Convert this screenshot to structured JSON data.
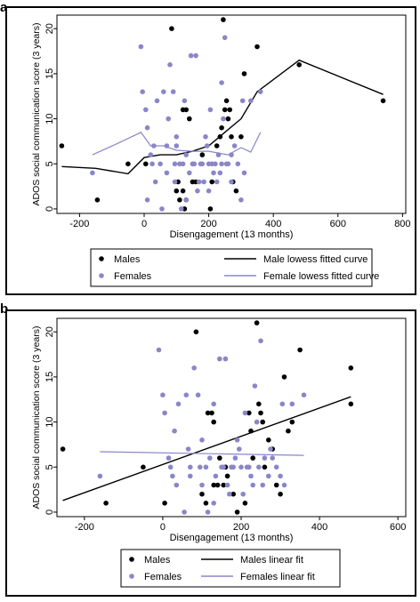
{
  "panels": [
    {
      "letter": "a",
      "colors": {
        "male": "#000000",
        "female": "#8a86c8"
      },
      "legend": {
        "males": "Males",
        "females": "Females",
        "male_fit": "Male lowess fitted curve",
        "female_fit": "Female lowess fitted curve"
      }
    },
    {
      "letter": "b",
      "colors": {
        "male": "#000000",
        "female": "#8a86c8"
      },
      "legend": {
        "males": "Males",
        "females": "Females",
        "male_fit": "Males linear fit",
        "female_fit": "Females linear fit"
      }
    }
  ],
  "chart_data": [
    {
      "type": "scatter",
      "title": "",
      "xlabel": "Disengagement (13 months)",
      "ylabel": "ADOS social communication score (3 years)",
      "xlim": [
        -270,
        810
      ],
      "ylim": [
        -0.5,
        21.5
      ],
      "xticks": [
        -200,
        0,
        200,
        400,
        600,
        800
      ],
      "yticks": [
        0,
        5,
        10,
        15,
        20
      ],
      "grid": false,
      "legend_position": "bottom",
      "series": [
        {
          "name": "Males",
          "kind": "points",
          "points": [
            [
              -255,
              7
            ],
            [
              -145,
              1
            ],
            [
              -50,
              5
            ],
            [
              5,
              5
            ],
            [
              85,
              20
            ],
            [
              105,
              3
            ],
            [
              120,
              11
            ],
            [
              130,
              11
            ],
            [
              140,
              10
            ],
            [
              100,
              2
            ],
            [
              110,
              1
            ],
            [
              120,
              2
            ],
            [
              125,
              0
            ],
            [
              130,
              1
            ],
            [
              150,
              3
            ],
            [
              160,
              3
            ],
            [
              180,
              6
            ],
            [
              205,
              0
            ],
            [
              210,
              3
            ],
            [
              225,
              7
            ],
            [
              235,
              8
            ],
            [
              240,
              9
            ],
            [
              250,
              11
            ],
            [
              255,
              12
            ],
            [
              260,
              10
            ],
            [
              265,
              11
            ],
            [
              270,
              8
            ],
            [
              275,
              3
            ],
            [
              245,
              21
            ],
            [
              285,
              2
            ],
            [
              300,
              8
            ],
            [
              310,
              15
            ],
            [
              350,
              18
            ],
            [
              480,
              16
            ],
            [
              740,
              12
            ]
          ]
        },
        {
          "name": "Females",
          "kind": "points",
          "points": [
            [
              -160,
              4
            ],
            [
              -10,
              18
            ],
            [
              -5,
              13
            ],
            [
              5,
              11
            ],
            [
              10,
              9
            ],
            [
              10,
              1
            ],
            [
              20,
              6
            ],
            [
              25,
              5
            ],
            [
              30,
              7
            ],
            [
              35,
              3
            ],
            [
              40,
              12
            ],
            [
              50,
              5
            ],
            [
              55,
              0
            ],
            [
              60,
              13
            ],
            [
              70,
              4
            ],
            [
              70,
              7
            ],
            [
              75,
              10
            ],
            [
              80,
              16
            ],
            [
              90,
              13
            ],
            [
              95,
              5
            ],
            [
              95,
              3
            ],
            [
              100,
              8
            ],
            [
              100,
              7
            ],
            [
              110,
              5
            ],
            [
              115,
              0
            ],
            [
              120,
              5
            ],
            [
              125,
              12
            ],
            [
              130,
              6
            ],
            [
              130,
              1
            ],
            [
              140,
              4
            ],
            [
              145,
              17
            ],
            [
              150,
              5
            ],
            [
              155,
              5
            ],
            [
              160,
              17
            ],
            [
              165,
              2
            ],
            [
              170,
              3
            ],
            [
              175,
              5
            ],
            [
              180,
              5
            ],
            [
              185,
              3
            ],
            [
              190,
              8
            ],
            [
              195,
              7
            ],
            [
              200,
              5
            ],
            [
              200,
              2
            ],
            [
              205,
              11
            ],
            [
              210,
              5
            ],
            [
              215,
              4
            ],
            [
              220,
              5
            ],
            [
              225,
              3
            ],
            [
              230,
              6
            ],
            [
              235,
              4
            ],
            [
              240,
              14
            ],
            [
              240,
              5
            ],
            [
              245,
              10
            ],
            [
              250,
              19
            ],
            [
              255,
              5
            ],
            [
              260,
              5
            ],
            [
              270,
              3
            ],
            [
              270,
              6
            ],
            [
              280,
              7
            ],
            [
              290,
              5
            ],
            [
              300,
              1
            ],
            [
              305,
              12
            ],
            [
              310,
              4
            ],
            [
              330,
              12
            ],
            [
              360,
              13
            ]
          ]
        },
        {
          "name": "Male lowess fitted curve",
          "kind": "line",
          "points": [
            [
              -255,
              4.7
            ],
            [
              -150,
              4.5
            ],
            [
              -50,
              3.9
            ],
            [
              0,
              5.7
            ],
            [
              50,
              6.0
            ],
            [
              100,
              6.0
            ],
            [
              150,
              6.4
            ],
            [
              200,
              7.0
            ],
            [
              250,
              8.5
            ],
            [
              300,
              10.0
            ],
            [
              350,
              13.0
            ],
            [
              480,
              16.5
            ],
            [
              740,
              12.7
            ]
          ]
        },
        {
          "name": "Female lowess fitted curve",
          "kind": "line",
          "points": [
            [
              -160,
              6.0
            ],
            [
              -80,
              7.3
            ],
            [
              -10,
              8.5
            ],
            [
              20,
              7.0
            ],
            [
              60,
              7.0
            ],
            [
              100,
              6.5
            ],
            [
              150,
              6.4
            ],
            [
              200,
              6.4
            ],
            [
              260,
              6.0
            ],
            [
              300,
              6.8
            ],
            [
              330,
              6.3
            ],
            [
              360,
              8.5
            ]
          ]
        }
      ]
    },
    {
      "type": "scatter",
      "title": "",
      "xlabel": "Disengagement (13 months)",
      "ylabel": "ADOS social communication score (3 years)",
      "xlim": [
        -270,
        620
      ],
      "ylim": [
        -0.5,
        21.5
      ],
      "xticks": [
        -200,
        0,
        200,
        400,
        600
      ],
      "yticks": [
        0,
        5,
        10,
        15,
        20
      ],
      "grid": false,
      "legend_position": "bottom",
      "series": [
        {
          "name": "Males",
          "kind": "points",
          "points": [
            [
              -255,
              7
            ],
            [
              -145,
              1
            ],
            [
              -50,
              5
            ],
            [
              5,
              1
            ],
            [
              85,
              20
            ],
            [
              100,
              2
            ],
            [
              110,
              1
            ],
            [
              115,
              11
            ],
            [
              125,
              11
            ],
            [
              130,
              10
            ],
            [
              130,
              3
            ],
            [
              140,
              3
            ],
            [
              145,
              6
            ],
            [
              155,
              3
            ],
            [
              160,
              5
            ],
            [
              165,
              4
            ],
            [
              180,
              2
            ],
            [
              190,
              0
            ],
            [
              210,
              1
            ],
            [
              220,
              11
            ],
            [
              225,
              9
            ],
            [
              230,
              6
            ],
            [
              240,
              21
            ],
            [
              245,
              12
            ],
            [
              250,
              11
            ],
            [
              255,
              10
            ],
            [
              260,
              5
            ],
            [
              270,
              8
            ],
            [
              280,
              7
            ],
            [
              290,
              3
            ],
            [
              300,
              2
            ],
            [
              310,
              15
            ],
            [
              320,
              9
            ],
            [
              330,
              10
            ],
            [
              350,
              18
            ],
            [
              480,
              16
            ],
            [
              480,
              12
            ]
          ]
        },
        {
          "name": "Females",
          "kind": "points",
          "points": [
            [
              -160,
              4
            ],
            [
              -10,
              18
            ],
            [
              0,
              13
            ],
            [
              5,
              11
            ],
            [
              15,
              6
            ],
            [
              20,
              5
            ],
            [
              25,
              4
            ],
            [
              30,
              9
            ],
            [
              35,
              3
            ],
            [
              40,
              12
            ],
            [
              55,
              0
            ],
            [
              60,
              13
            ],
            [
              65,
              7
            ],
            [
              70,
              4
            ],
            [
              70,
              5
            ],
            [
              80,
              16
            ],
            [
              90,
              13
            ],
            [
              95,
              5
            ],
            [
              100,
              8
            ],
            [
              100,
              3
            ],
            [
              110,
              5
            ],
            [
              115,
              0
            ],
            [
              120,
              6
            ],
            [
              130,
              12
            ],
            [
              130,
              1
            ],
            [
              135,
              4
            ],
            [
              145,
              17
            ],
            [
              150,
              5
            ],
            [
              155,
              5
            ],
            [
              160,
              17
            ],
            [
              165,
              3
            ],
            [
              170,
              2
            ],
            [
              175,
              5
            ],
            [
              180,
              5
            ],
            [
              185,
              6
            ],
            [
              190,
              8
            ],
            [
              195,
              7
            ],
            [
              200,
              5
            ],
            [
              205,
              2
            ],
            [
              210,
              11
            ],
            [
              215,
              5
            ],
            [
              220,
              5
            ],
            [
              225,
              4
            ],
            [
              230,
              3
            ],
            [
              235,
              14
            ],
            [
              240,
              10
            ],
            [
              245,
              5
            ],
            [
              250,
              19
            ],
            [
              255,
              3
            ],
            [
              260,
              6
            ],
            [
              270,
              4
            ],
            [
              275,
              7
            ],
            [
              280,
              6
            ],
            [
              290,
              5
            ],
            [
              300,
              4
            ],
            [
              305,
              12
            ],
            [
              310,
              3
            ],
            [
              330,
              12
            ],
            [
              360,
              13
            ]
          ]
        },
        {
          "name": "Males linear fit",
          "kind": "line",
          "points": [
            [
              -255,
              1.3
            ],
            [
              480,
              12.8
            ]
          ]
        },
        {
          "name": "Females linear fit",
          "kind": "line",
          "points": [
            [
              -160,
              6.7
            ],
            [
              360,
              6.3
            ]
          ]
        }
      ]
    }
  ]
}
